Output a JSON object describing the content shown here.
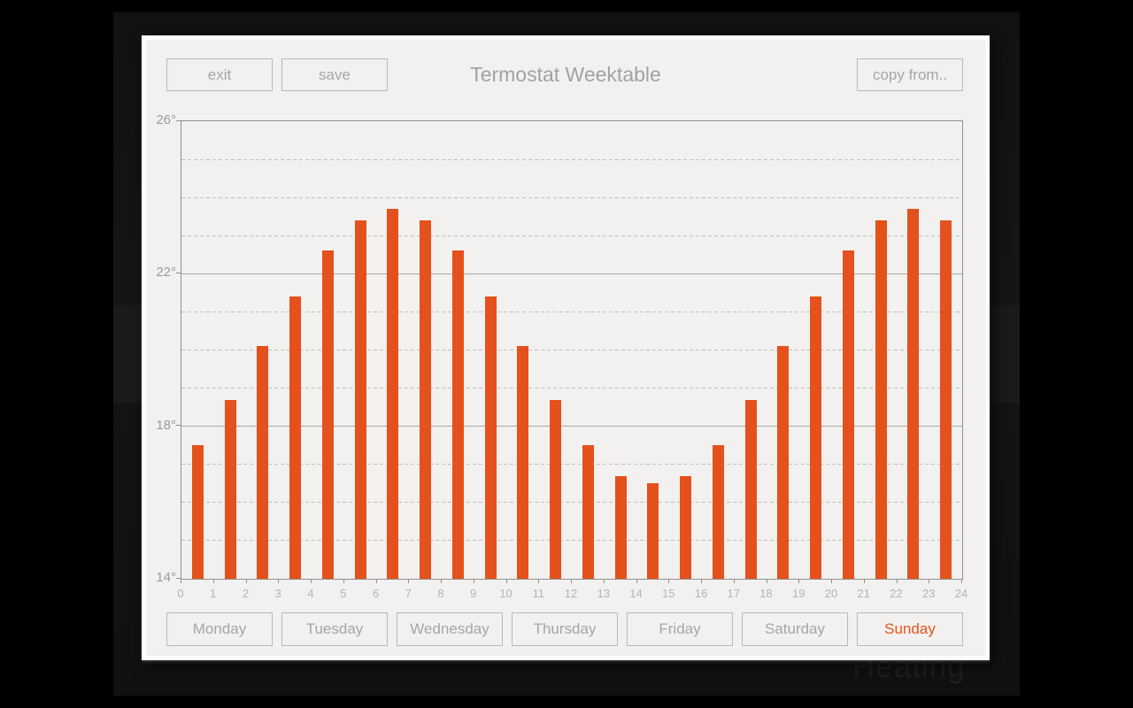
{
  "background": {
    "text": "Heating"
  },
  "title": "Termostat Weektable",
  "toolbar": {
    "exit_label": "exit",
    "save_label": "save",
    "copy_from_label": "copy from.."
  },
  "day_tabs": [
    {
      "label": "Monday",
      "selected": false
    },
    {
      "label": "Tuesday",
      "selected": false
    },
    {
      "label": "Wednesday",
      "selected": false
    },
    {
      "label": "Thursday",
      "selected": false
    },
    {
      "label": "Friday",
      "selected": false
    },
    {
      "label": "Saturday",
      "selected": false
    },
    {
      "label": "Sunday",
      "selected": true
    }
  ],
  "colors": {
    "accent": "#e5511c",
    "panel_background": "#f2f1ef",
    "button_border": "#b9b9b9",
    "button_text": "#a6a6a6",
    "axis": "#909090",
    "grid_solid": "#a6a6a6",
    "grid_dashed": "#bfbfbf"
  },
  "chart_data": {
    "type": "bar",
    "x": [
      0,
      1,
      2,
      3,
      4,
      5,
      6,
      7,
      8,
      9,
      10,
      11,
      12,
      13,
      14,
      15,
      16,
      17,
      18,
      19,
      20,
      21,
      22,
      23
    ],
    "values": [
      17.5,
      18.7,
      20.1,
      21.4,
      22.6,
      23.4,
      23.7,
      23.4,
      22.6,
      21.4,
      20.1,
      18.7,
      17.5,
      16.7,
      16.5,
      16.7,
      17.5,
      18.7,
      20.1,
      21.4,
      22.6,
      23.4,
      23.7,
      23.4
    ],
    "title": "",
    "xlabel": "",
    "ylabel": "",
    "xlim": [
      0,
      24
    ],
    "ylim": [
      14,
      26
    ],
    "x_tick_labels": [
      "0",
      "1",
      "2",
      "3",
      "4",
      "5",
      "6",
      "7",
      "8",
      "9",
      "10",
      "11",
      "12",
      "13",
      "14",
      "15",
      "16",
      "17",
      "18",
      "19",
      "20",
      "21",
      "22",
      "23",
      "24"
    ],
    "y_ticks": [
      {
        "value": 26,
        "label": "26°"
      },
      {
        "value": 22,
        "label": "22°"
      },
      {
        "value": 18,
        "label": "18°"
      },
      {
        "value": 14,
        "label": "14°"
      }
    ],
    "grid_solid_at": [
      22,
      18
    ],
    "grid_dashed_at": [
      25,
      24,
      23,
      21,
      20,
      19,
      17,
      16,
      15
    ],
    "legend": "off",
    "bar_color": "#e5511c"
  }
}
